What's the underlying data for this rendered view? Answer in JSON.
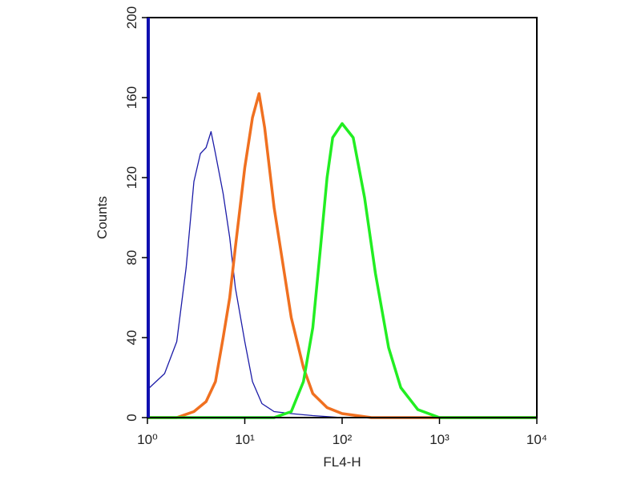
{
  "chart_data": {
    "type": "line",
    "x_label": "FL4-H",
    "y_label": "Counts",
    "log_x": true,
    "xlim": [
      1,
      10000
    ],
    "xticks": [
      {
        "value": 1,
        "label": "10⁰"
      },
      {
        "value": 10,
        "label": "10¹"
      },
      {
        "value": 100,
        "label": "10²"
      },
      {
        "value": 1000,
        "label": "10³"
      },
      {
        "value": 10000,
        "label": "10⁴"
      }
    ],
    "ylim": [
      0,
      200
    ],
    "yticks": [
      0,
      40,
      80,
      120,
      160,
      200
    ],
    "series": [
      {
        "color": "#1c1ca8",
        "width": 1.3,
        "x": [
          1,
          1.5,
          2,
          2.5,
          3,
          3.5,
          4,
          4.5,
          5,
          6,
          7,
          8,
          10,
          12,
          15,
          20,
          30,
          50,
          100,
          10000
        ],
        "values": [
          14,
          22,
          38,
          75,
          118,
          132,
          135,
          143,
          132,
          112,
          90,
          65,
          38,
          18,
          7,
          3,
          2,
          1,
          0,
          0
        ]
      },
      {
        "color": "#f07020",
        "width": 3.5,
        "x": [
          1,
          2,
          3,
          4,
          5,
          6,
          7,
          8,
          10,
          12,
          14,
          16,
          20,
          25,
          30,
          40,
          50,
          70,
          100,
          200,
          10000
        ],
        "values": [
          0,
          0,
          3,
          8,
          18,
          40,
          60,
          85,
          125,
          150,
          162,
          145,
          105,
          75,
          50,
          25,
          12,
          5,
          2,
          0,
          0
        ]
      },
      {
        "color": "#22ee22",
        "width": 3.5,
        "x": [
          1,
          20,
          30,
          40,
          50,
          60,
          70,
          80,
          100,
          130,
          170,
          220,
          300,
          400,
          600,
          1000,
          10000
        ],
        "values": [
          0,
          0,
          3,
          18,
          45,
          85,
          120,
          140,
          147,
          140,
          110,
          72,
          35,
          15,
          4,
          0,
          0
        ]
      }
    ]
  }
}
